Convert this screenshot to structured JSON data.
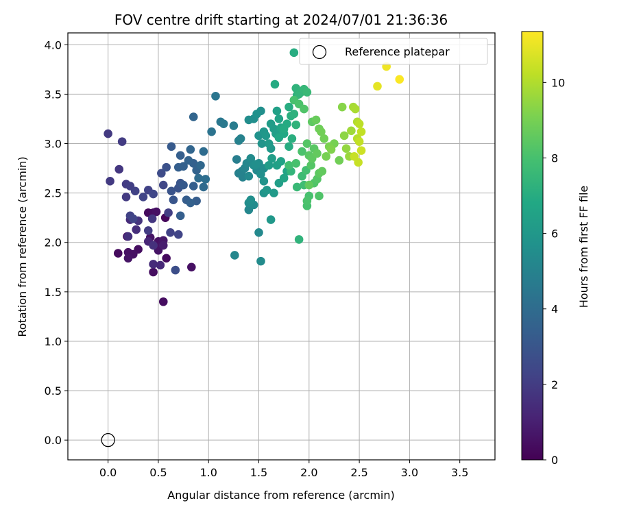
{
  "chart_data": {
    "type": "scatter",
    "title": "FOV centre drift starting at 2024/07/01 21:36:36",
    "xlabel": "Angular distance from reference (arcmin)",
    "ylabel": "Rotation from reference (arcmin)",
    "xlim": [
      -0.4,
      3.85
    ],
    "ylim": [
      -0.2,
      4.12
    ],
    "xticks": [
      0.0,
      0.5,
      1.0,
      1.5,
      2.0,
      2.5,
      3.0,
      3.5
    ],
    "xtick_labels": [
      "0.0",
      "0.5",
      "1.0",
      "1.5",
      "2.0",
      "2.5",
      "3.0",
      "3.5"
    ],
    "yticks": [
      0.0,
      0.5,
      1.0,
      1.5,
      2.0,
      2.5,
      3.0,
      3.5,
      4.0
    ],
    "ytick_labels": [
      "0.0",
      "0.5",
      "1.0",
      "1.5",
      "2.0",
      "2.5",
      "3.0",
      "3.5",
      "4.0"
    ],
    "grid": true,
    "legend": {
      "position": "top-right",
      "label": "Reference platepar"
    },
    "reference_point": {
      "x": 0.0,
      "y": 0.0
    },
    "colorbar": {
      "label": "Hours from first FF file",
      "range": [
        0,
        11.35
      ],
      "ticks": [
        0,
        2,
        4,
        6,
        8,
        10
      ],
      "tick_labels": [
        "0",
        "2",
        "4",
        "6",
        "8",
        "10"
      ],
      "colormap": "viridis",
      "stops": [
        "#440154",
        "#482475",
        "#414487",
        "#355f8d",
        "#2a788e",
        "#21918c",
        "#22a884",
        "#44bf70",
        "#7ad151",
        "#bddf26",
        "#fde725"
      ]
    },
    "points": [
      [
        0.1,
        1.89,
        0.3
      ],
      [
        0.19,
        2.06,
        0.4
      ],
      [
        0.2,
        1.9,
        0.5
      ],
      [
        0.2,
        1.84,
        0.6
      ],
      [
        0.25,
        1.88,
        0.5
      ],
      [
        0.3,
        1.93,
        0.4
      ],
      [
        0.4,
        2.3,
        0.3
      ],
      [
        0.42,
        2.05,
        0.6
      ],
      [
        0.45,
        2.3,
        0.4
      ],
      [
        0.48,
        2.31,
        0.5
      ],
      [
        0.45,
        1.7,
        0.4
      ],
      [
        0.5,
        1.92,
        0.6
      ],
      [
        0.5,
        2.01,
        0.5
      ],
      [
        0.53,
        1.98,
        0.6
      ],
      [
        0.55,
        2.02,
        0.7
      ],
      [
        0.58,
        1.84,
        0.3
      ],
      [
        0.57,
        2.25,
        0.2
      ],
      [
        0.55,
        1.4,
        0.4
      ],
      [
        0.83,
        1.75,
        0.5
      ],
      [
        0.55,
        1.97,
        0.9
      ],
      [
        0.45,
        1.78,
        1.4
      ],
      [
        0.52,
        1.77,
        1.3
      ],
      [
        0.4,
        2.01,
        1.2
      ],
      [
        0.28,
        2.13,
        1.5
      ],
      [
        0.22,
        2.23,
        1.4
      ],
      [
        0.3,
        2.22,
        1.7
      ],
      [
        0.2,
        2.06,
        1.6
      ],
      [
        0.44,
        2.24,
        1.8
      ],
      [
        0.45,
        1.97,
        1.6
      ],
      [
        0.4,
        2.12,
        2.0
      ],
      [
        0.6,
        2.3,
        2.1
      ],
      [
        0.62,
        2.1,
        2.2
      ],
      [
        0.7,
        2.08,
        2.3
      ],
      [
        0.67,
        1.72,
        2.7
      ],
      [
        0.0,
        3.1,
        1.9
      ],
      [
        0.14,
        3.02,
        2.0
      ],
      [
        0.11,
        2.74,
        1.8
      ],
      [
        0.02,
        2.62,
        1.9
      ],
      [
        0.18,
        2.59,
        2.0
      ],
      [
        0.22,
        2.57,
        2.1
      ],
      [
        0.18,
        2.46,
        1.9
      ],
      [
        0.27,
        2.52,
        2.2
      ],
      [
        0.35,
        2.46,
        2.3
      ],
      [
        0.4,
        2.53,
        2.2
      ],
      [
        0.45,
        2.49,
        2.4
      ],
      [
        0.22,
        2.27,
        2.2
      ],
      [
        0.25,
        2.24,
        2.3
      ],
      [
        0.55,
        2.58,
        2.4
      ],
      [
        0.53,
        2.7,
        2.6
      ],
      [
        0.58,
        2.76,
        2.8
      ],
      [
        0.63,
        2.52,
        2.9
      ],
      [
        0.65,
        2.43,
        3.0
      ],
      [
        0.7,
        2.55,
        2.9
      ],
      [
        0.72,
        2.6,
        3.0
      ],
      [
        0.75,
        2.58,
        3.2
      ],
      [
        0.78,
        2.43,
        3.3
      ],
      [
        0.82,
        2.4,
        3.5
      ],
      [
        0.85,
        2.57,
        3.4
      ],
      [
        0.88,
        2.42,
        3.3
      ],
      [
        0.72,
        2.27,
        3.4
      ],
      [
        0.63,
        2.97,
        3.2
      ],
      [
        0.7,
        2.76,
        3.4
      ],
      [
        0.72,
        2.88,
        3.4
      ],
      [
        0.75,
        2.77,
        3.5
      ],
      [
        0.8,
        2.83,
        3.6
      ],
      [
        0.82,
        2.94,
        3.7
      ],
      [
        0.85,
        2.8,
        3.5
      ],
      [
        0.88,
        2.73,
        3.6
      ],
      [
        0.92,
        2.78,
        3.8
      ],
      [
        0.9,
        2.65,
        4.0
      ],
      [
        0.95,
        2.92,
        4.0
      ],
      [
        0.95,
        2.56,
        3.9
      ],
      [
        0.97,
        2.64,
        4.1
      ],
      [
        0.85,
        3.27,
        3.7
      ],
      [
        1.03,
        3.12,
        4.3
      ],
      [
        1.07,
        3.48,
        4.4
      ],
      [
        1.12,
        3.22,
        4.5
      ],
      [
        1.15,
        3.2,
        4.6
      ],
      [
        1.25,
        3.18,
        4.7
      ],
      [
        1.28,
        2.84,
        4.8
      ],
      [
        1.3,
        3.03,
        4.9
      ],
      [
        1.32,
        3.05,
        5.0
      ],
      [
        1.3,
        2.7,
        4.9
      ],
      [
        1.34,
        2.66,
        5.0
      ],
      [
        1.36,
        2.75,
        5.1
      ],
      [
        1.38,
        2.8,
        5.2
      ],
      [
        1.4,
        2.67,
        5.3
      ],
      [
        1.42,
        2.85,
        5.4
      ],
      [
        1.45,
        2.78,
        5.5
      ],
      [
        1.48,
        2.73,
        5.3
      ],
      [
        1.5,
        2.8,
        5.5
      ],
      [
        1.52,
        2.69,
        5.6
      ],
      [
        1.55,
        2.75,
        5.5
      ],
      [
        1.4,
        2.4,
        5.5
      ],
      [
        1.42,
        2.43,
        5.6
      ],
      [
        1.45,
        2.38,
        5.4
      ],
      [
        1.4,
        2.33,
        5.2
      ],
      [
        1.5,
        2.1,
        5.3
      ],
      [
        1.52,
        1.81,
        5.4
      ],
      [
        1.26,
        1.87,
        5.2
      ],
      [
        1.4,
        3.24,
        5.5
      ],
      [
        1.45,
        3.25,
        5.6
      ],
      [
        1.48,
        3.3,
        5.7
      ],
      [
        1.52,
        3.33,
        5.6
      ],
      [
        1.5,
        3.08,
        5.7
      ],
      [
        1.53,
        3.0,
        5.8
      ],
      [
        1.55,
        3.12,
        5.9
      ],
      [
        1.57,
        3.08,
        6.0
      ],
      [
        1.6,
        3.0,
        6.1
      ],
      [
        1.62,
        2.95,
        6.0
      ],
      [
        1.65,
        3.15,
        6.2
      ],
      [
        1.67,
        3.1,
        6.3
      ],
      [
        1.68,
        3.33,
        6.4
      ],
      [
        1.7,
        3.25,
        6.5
      ],
      [
        1.72,
        3.16,
        6.6
      ],
      [
        1.55,
        2.5,
        5.8
      ],
      [
        1.58,
        2.53,
        6.0
      ],
      [
        1.62,
        2.23,
        6.0
      ],
      [
        1.65,
        2.5,
        6.1
      ],
      [
        1.6,
        2.78,
        6.2
      ],
      [
        1.63,
        2.85,
        6.3
      ],
      [
        1.68,
        2.78,
        6.4
      ],
      [
        1.72,
        2.82,
        6.5
      ],
      [
        1.75,
        2.65,
        6.6
      ],
      [
        1.78,
        2.72,
        6.6
      ],
      [
        1.66,
        3.6,
        6.9
      ],
      [
        1.7,
        3.06,
        6.7
      ],
      [
        1.75,
        3.1,
        6.8
      ],
      [
        1.78,
        3.2,
        6.9
      ],
      [
        1.8,
        3.37,
        7.0
      ],
      [
        1.82,
        3.28,
        7.1
      ],
      [
        1.85,
        3.3,
        7.2
      ],
      [
        1.8,
        2.97,
        7.0
      ],
      [
        1.83,
        3.05,
        7.1
      ],
      [
        1.87,
        3.19,
        7.3
      ],
      [
        1.88,
        3.49,
        7.2
      ],
      [
        1.9,
        3.5,
        7.4
      ],
      [
        1.92,
        3.52,
        7.4
      ],
      [
        1.87,
        3.56,
        7.3
      ],
      [
        1.95,
        3.55,
        7.5
      ],
      [
        1.98,
        3.52,
        7.6
      ],
      [
        1.85,
        3.92,
        7.0
      ],
      [
        1.9,
        2.03,
        7.3
      ],
      [
        1.82,
        2.72,
        7.4
      ],
      [
        1.88,
        2.56,
        7.6
      ],
      [
        1.93,
        2.67,
        7.7
      ],
      [
        1.95,
        2.58,
        7.8
      ],
      [
        1.97,
        2.73,
        7.9
      ],
      [
        2.0,
        2.47,
        8.0
      ],
      [
        1.98,
        2.42,
        8.1
      ],
      [
        1.98,
        2.37,
        8.0
      ],
      [
        2.05,
        2.6,
        8.2
      ],
      [
        2.08,
        2.64,
        8.3
      ],
      [
        2.1,
        2.47,
        8.2
      ],
      [
        1.8,
        2.78,
        7.9
      ],
      [
        1.87,
        2.8,
        8.0
      ],
      [
        1.85,
        3.44,
        8.0
      ],
      [
        1.9,
        3.4,
        8.1
      ],
      [
        1.95,
        3.35,
        8.2
      ],
      [
        1.98,
        3.0,
        8.3
      ],
      [
        2.0,
        2.88,
        8.4
      ],
      [
        2.03,
        2.85,
        8.5
      ],
      [
        2.05,
        2.95,
        8.4
      ],
      [
        2.08,
        2.9,
        8.6
      ],
      [
        2.1,
        2.7,
        8.5
      ],
      [
        2.03,
        3.22,
        8.5
      ],
      [
        2.07,
        3.24,
        8.7
      ],
      [
        2.1,
        3.15,
        8.8
      ],
      [
        2.12,
        3.12,
        8.9
      ],
      [
        2.15,
        3.05,
        8.9
      ],
      [
        2.17,
        2.87,
        9.0
      ],
      [
        2.2,
        2.97,
        9.1
      ],
      [
        2.22,
        2.94,
        9.2
      ],
      [
        2.25,
        3.0,
        9.0
      ],
      [
        2.3,
        2.83,
        8.9
      ],
      [
        2.33,
        3.37,
        9.3
      ],
      [
        2.35,
        3.08,
        9.4
      ],
      [
        2.37,
        2.95,
        9.5
      ],
      [
        2.4,
        2.87,
        9.6
      ],
      [
        2.42,
        3.13,
        9.7
      ],
      [
        2.44,
        3.37,
        9.8
      ],
      [
        2.46,
        3.35,
        9.9
      ],
      [
        2.48,
        3.22,
        10.0
      ],
      [
        2.5,
        3.2,
        10.2
      ],
      [
        2.52,
        3.12,
        10.3
      ],
      [
        2.48,
        3.05,
        10.1
      ],
      [
        2.5,
        3.02,
        10.3
      ],
      [
        2.49,
        2.81,
        10.4
      ],
      [
        2.52,
        2.93,
        10.5
      ],
      [
        2.45,
        2.87,
        10.4
      ],
      [
        2.68,
        3.58,
        10.9
      ],
      [
        2.77,
        3.78,
        11.1
      ],
      [
        2.9,
        3.65,
        11.3
      ],
      [
        2.0,
        2.58,
        8.6
      ],
      [
        1.93,
        2.92,
        8.1
      ],
      [
        1.75,
        3.15,
        6.9
      ],
      [
        1.62,
        3.2,
        6.2
      ],
      [
        1.7,
        2.6,
        6.3
      ],
      [
        1.55,
        2.62,
        5.8
      ],
      [
        1.47,
        2.79,
        5.6
      ],
      [
        1.33,
        2.72,
        5.0
      ],
      [
        2.13,
        2.72,
        8.6
      ],
      [
        2.02,
        2.78,
        8.3
      ]
    ]
  }
}
